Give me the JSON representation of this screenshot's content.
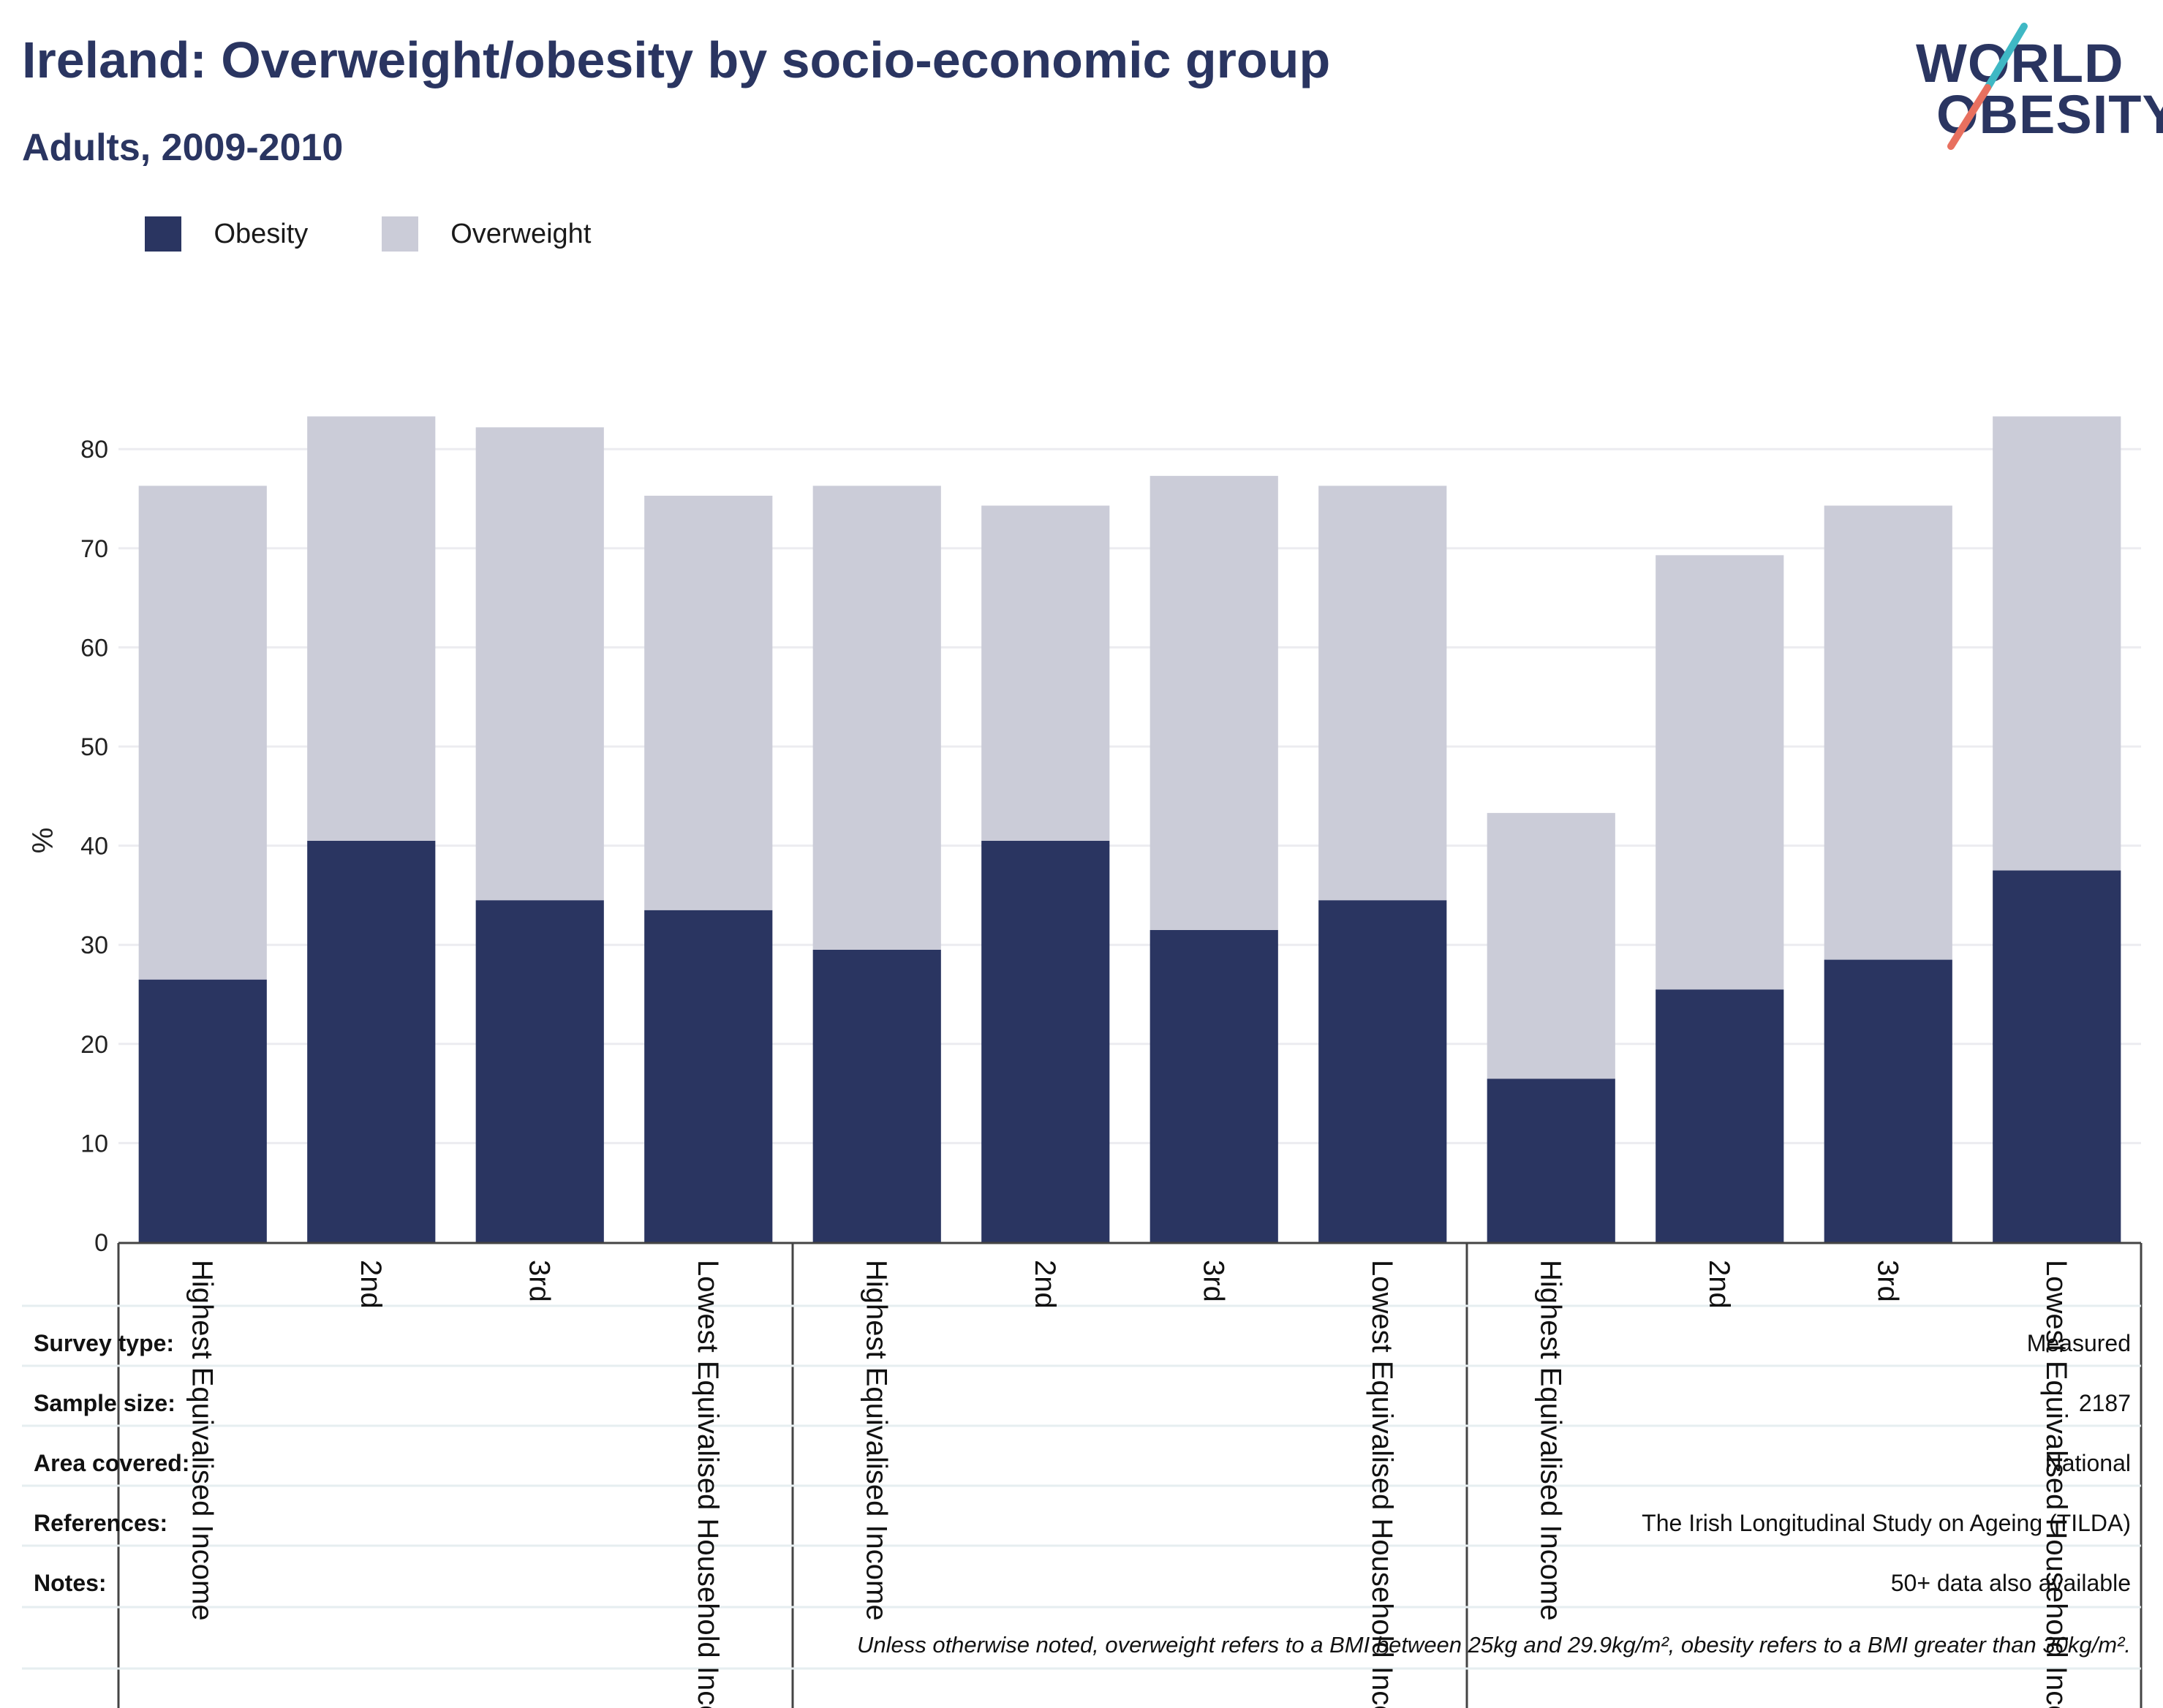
{
  "header": {
    "title": "Ireland: Overweight/obesity by socio-economic group",
    "subtitle": "Adults, 2009-2010"
  },
  "logo": {
    "line1": "WORLD",
    "line2": "OBESITY",
    "colors": {
      "text": "#2a3561",
      "slash_top": "#3fb8c4",
      "slash_bottom": "#e8705f"
    }
  },
  "legend": [
    {
      "label": "Obesity",
      "color": "#2a3561"
    },
    {
      "label": "Overweight",
      "color": "#cbccd8"
    }
  ],
  "chart_data": {
    "type": "bar",
    "stacked": true,
    "ylabel": "%",
    "xlabel": "",
    "ylim": [
      0,
      84
    ],
    "yticks": [
      0,
      10,
      20,
      30,
      40,
      50,
      60,
      70,
      80
    ],
    "grid": true,
    "legend_position": "top-left",
    "categories": [
      "Highest Equivalised Income",
      "2nd",
      "3rd",
      "Lowest Equivalised Household Income",
      "Highest Equivalised Income",
      "2nd",
      "3rd",
      "Lowest Equivalised Household Income",
      "Highest Equivalised Income",
      "2nd",
      "3rd",
      "Lowest Equivalised Household Income"
    ],
    "category_groups": [
      4,
      4,
      4
    ],
    "series": [
      {
        "name": "Obesity",
        "color": "#2a3561",
        "values": [
          26.5,
          40.5,
          34.5,
          33.5,
          29.5,
          40.5,
          31.5,
          34.5,
          16.5,
          25.5,
          28.5,
          37.5
        ]
      },
      {
        "name": "Overweight",
        "color": "#cbccd8",
        "values": [
          49.8,
          42.8,
          47.7,
          41.8,
          46.8,
          33.8,
          45.8,
          41.8,
          26.8,
          43.8,
          45.8,
          45.8
        ]
      }
    ]
  },
  "notes": {
    "rows": [
      {
        "label": "Survey type:",
        "value": "Measured"
      },
      {
        "label": "Sample size:",
        "value": "2187"
      },
      {
        "label": "Area covered:",
        "value": "National"
      },
      {
        "label": "References:",
        "value": "The Irish Longitudinal Study on Ageing (TILDA)"
      },
      {
        "label": "Notes:",
        "value": "50+ data also available"
      }
    ],
    "footnote": "Unless otherwise noted, overweight refers to a BMI between 25kg and 29.9kg/m², obesity refers to a BMI greater than 30kg/m²."
  }
}
